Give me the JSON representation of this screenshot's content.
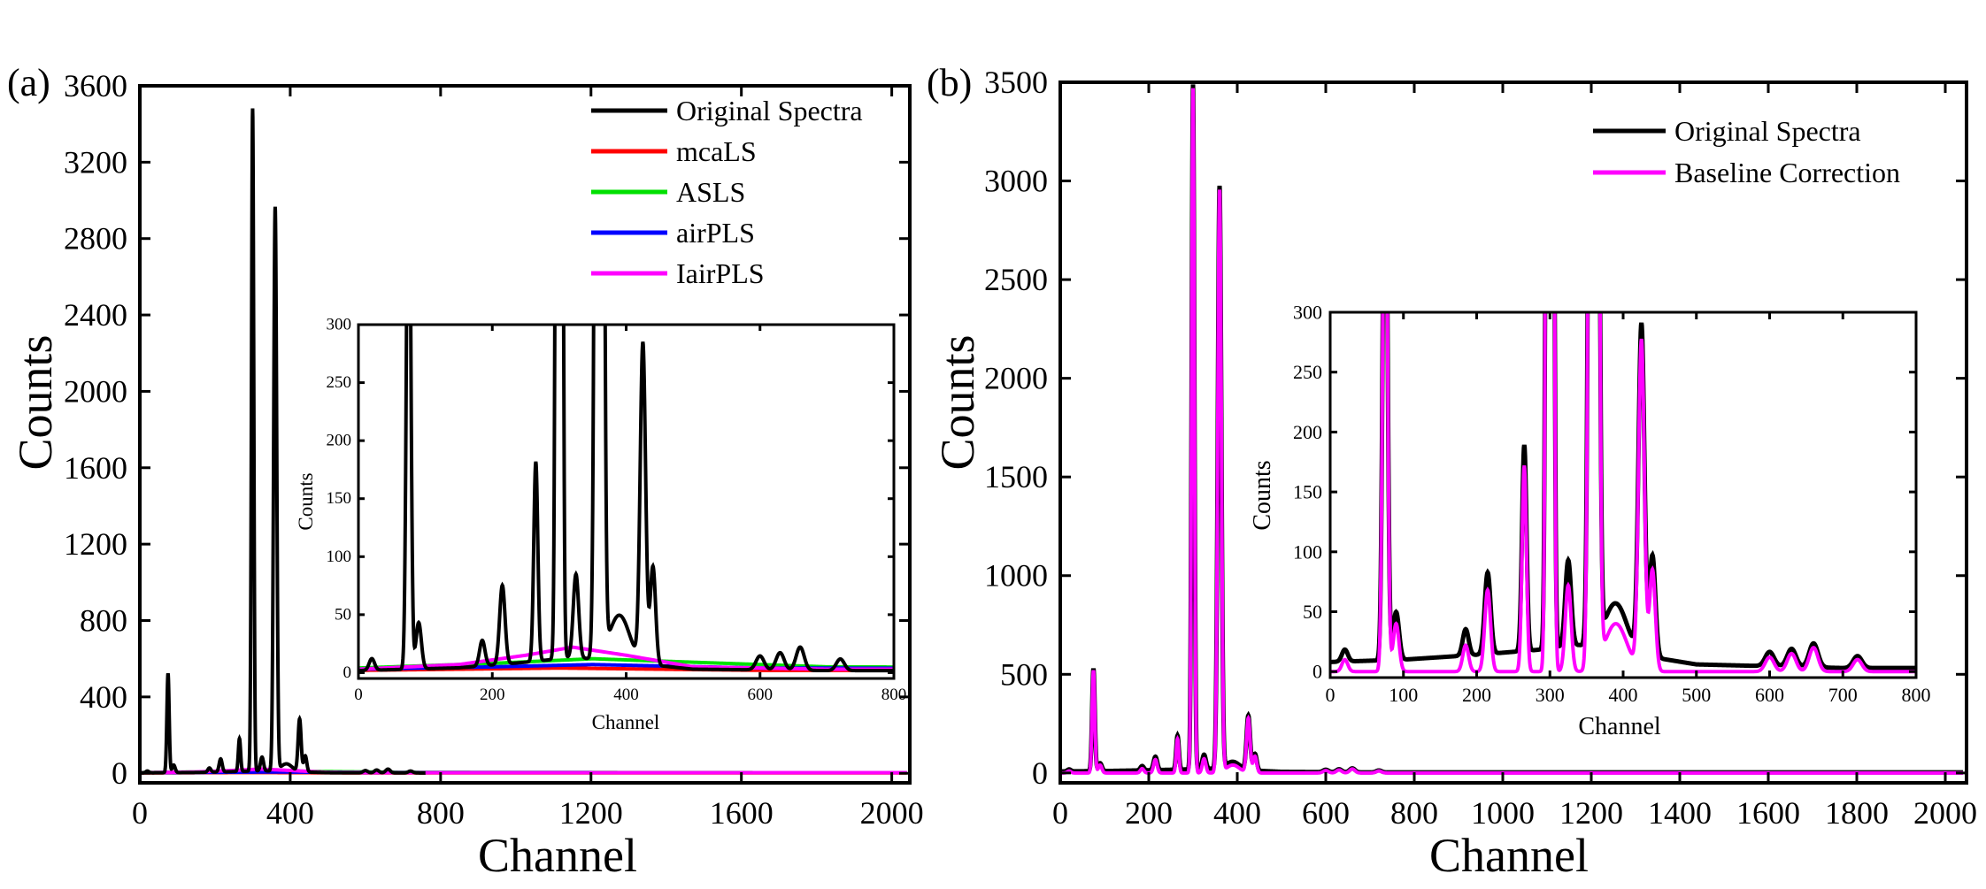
{
  "chart_data": [
    {
      "panel_label": "(a)",
      "type": "line",
      "xlabel": "Channel",
      "ylabel": "Counts",
      "xlim": [
        0,
        2048
      ],
      "ylim": [
        -50,
        3600
      ],
      "xticks": [
        0,
        400,
        800,
        1200,
        1600,
        2000
      ],
      "yticks": [
        0,
        400,
        800,
        1200,
        1600,
        2000,
        2400,
        2800,
        3200,
        3600
      ],
      "legend_position": "top-right",
      "series": [
        {
          "name": "Original Spectra",
          "color": "#000000"
        },
        {
          "name": "mcaLS",
          "color": "#ff0000"
        },
        {
          "name": "ASLS",
          "color": "#00e000"
        },
        {
          "name": "airPLS",
          "color": "#0000ff"
        },
        {
          "name": "IairPLS",
          "color": "#ff00ff"
        }
      ],
      "peaks": [
        [
          20,
          10,
          4
        ],
        [
          75,
          520,
          3
        ],
        [
          90,
          40,
          4
        ],
        [
          185,
          22,
          4
        ],
        [
          215,
          68,
          4
        ],
        [
          265,
          172,
          3
        ],
        [
          300,
          3470,
          3
        ],
        [
          325,
          72,
          4
        ],
        [
          360,
          2950,
          4
        ],
        [
          390,
          40,
          15
        ],
        [
          425,
          275,
          4
        ],
        [
          440,
          85,
          4
        ],
        [
          600,
          12,
          6
        ],
        [
          630,
          15,
          6
        ],
        [
          660,
          20,
          6
        ],
        [
          720,
          10,
          6
        ]
      ],
      "baselines": {
        "mcaLS": [
          [
            0,
            2
          ],
          [
            300,
            4
          ],
          [
            600,
            2
          ],
          [
            2000,
            2
          ]
        ],
        "ASLS": [
          [
            0,
            4
          ],
          [
            200,
            8
          ],
          [
            350,
            12
          ],
          [
            500,
            9
          ],
          [
            700,
            5
          ],
          [
            2000,
            3
          ]
        ],
        "airPLS": [
          [
            0,
            3
          ],
          [
            200,
            5
          ],
          [
            350,
            7
          ],
          [
            600,
            4
          ],
          [
            2000,
            3
          ]
        ],
        "IairPLS": [
          [
            0,
            3
          ],
          [
            150,
            7
          ],
          [
            250,
            15
          ],
          [
            320,
            22
          ],
          [
            400,
            15
          ],
          [
            500,
            5
          ],
          [
            700,
            3
          ],
          [
            2000,
            3
          ]
        ]
      },
      "inset": {
        "xlabel": "Channel",
        "ylabel": "Counts",
        "xlim": [
          0,
          800
        ],
        "ylim": [
          -5,
          300
        ],
        "xticks": [
          0,
          200,
          400,
          600,
          800
        ],
        "yticks": [
          0,
          50,
          100,
          150,
          200,
          250,
          300
        ]
      }
    },
    {
      "panel_label": "(b)",
      "type": "line",
      "xlabel": "Channel",
      "ylabel": "Counts",
      "xlim": [
        0,
        2048
      ],
      "ylim": [
        -50,
        3500
      ],
      "xticks": [
        0,
        200,
        400,
        600,
        800,
        1000,
        1200,
        1400,
        1600,
        1800,
        2000
      ],
      "yticks": [
        0,
        500,
        1000,
        1500,
        2000,
        2500,
        3000,
        3500
      ],
      "legend_position": "top-right",
      "series": [
        {
          "name": "Original Spectra",
          "color": "#000000"
        },
        {
          "name": "Baseline Correction",
          "color": "#ff00ff"
        }
      ],
      "baseline": [
        [
          0,
          8
        ],
        [
          100,
          10
        ],
        [
          200,
          14
        ],
        [
          280,
          18
        ],
        [
          340,
          22
        ],
        [
          400,
          16
        ],
        [
          500,
          6
        ],
        [
          700,
          3
        ],
        [
          2000,
          3
        ]
      ],
      "inset": {
        "xlabel": "Channel",
        "ylabel": "Counts",
        "xlim": [
          0,
          800
        ],
        "ylim": [
          -5,
          300
        ],
        "xticks": [
          0,
          100,
          200,
          300,
          400,
          500,
          600,
          700,
          800
        ],
        "yticks": [
          0,
          50,
          100,
          150,
          200,
          250,
          300
        ]
      }
    }
  ]
}
